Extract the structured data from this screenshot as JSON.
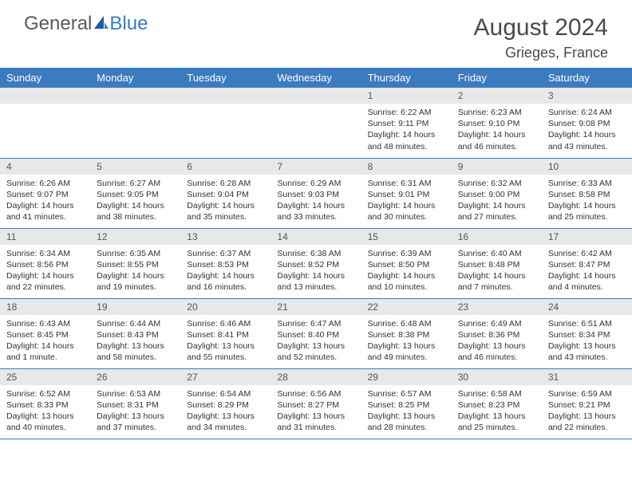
{
  "logo": {
    "part1": "General",
    "part2": "Blue"
  },
  "header": {
    "title": "August 2024",
    "location": "Grieges, France"
  },
  "colors": {
    "header_bg": "#3b7bbf",
    "header_text": "#ffffff",
    "daynum_bg": "#e8e8e8",
    "row_divider": "#3b7bbf",
    "body_text": "#333333",
    "logo_gray": "#5a5a5a",
    "logo_blue": "#3b7bbf"
  },
  "weekdays": [
    "Sunday",
    "Monday",
    "Tuesday",
    "Wednesday",
    "Thursday",
    "Friday",
    "Saturday"
  ],
  "weeks": [
    [
      {
        "day": "",
        "sunrise": "",
        "sunset": "",
        "daylight": ""
      },
      {
        "day": "",
        "sunrise": "",
        "sunset": "",
        "daylight": ""
      },
      {
        "day": "",
        "sunrise": "",
        "sunset": "",
        "daylight": ""
      },
      {
        "day": "",
        "sunrise": "",
        "sunset": "",
        "daylight": ""
      },
      {
        "day": "1",
        "sunrise": "Sunrise: 6:22 AM",
        "sunset": "Sunset: 9:11 PM",
        "daylight": "Daylight: 14 hours and 48 minutes."
      },
      {
        "day": "2",
        "sunrise": "Sunrise: 6:23 AM",
        "sunset": "Sunset: 9:10 PM",
        "daylight": "Daylight: 14 hours and 46 minutes."
      },
      {
        "day": "3",
        "sunrise": "Sunrise: 6:24 AM",
        "sunset": "Sunset: 9:08 PM",
        "daylight": "Daylight: 14 hours and 43 minutes."
      }
    ],
    [
      {
        "day": "4",
        "sunrise": "Sunrise: 6:26 AM",
        "sunset": "Sunset: 9:07 PM",
        "daylight": "Daylight: 14 hours and 41 minutes."
      },
      {
        "day": "5",
        "sunrise": "Sunrise: 6:27 AM",
        "sunset": "Sunset: 9:05 PM",
        "daylight": "Daylight: 14 hours and 38 minutes."
      },
      {
        "day": "6",
        "sunrise": "Sunrise: 6:28 AM",
        "sunset": "Sunset: 9:04 PM",
        "daylight": "Daylight: 14 hours and 35 minutes."
      },
      {
        "day": "7",
        "sunrise": "Sunrise: 6:29 AM",
        "sunset": "Sunset: 9:03 PM",
        "daylight": "Daylight: 14 hours and 33 minutes."
      },
      {
        "day": "8",
        "sunrise": "Sunrise: 6:31 AM",
        "sunset": "Sunset: 9:01 PM",
        "daylight": "Daylight: 14 hours and 30 minutes."
      },
      {
        "day": "9",
        "sunrise": "Sunrise: 6:32 AM",
        "sunset": "Sunset: 9:00 PM",
        "daylight": "Daylight: 14 hours and 27 minutes."
      },
      {
        "day": "10",
        "sunrise": "Sunrise: 6:33 AM",
        "sunset": "Sunset: 8:58 PM",
        "daylight": "Daylight: 14 hours and 25 minutes."
      }
    ],
    [
      {
        "day": "11",
        "sunrise": "Sunrise: 6:34 AM",
        "sunset": "Sunset: 8:56 PM",
        "daylight": "Daylight: 14 hours and 22 minutes."
      },
      {
        "day": "12",
        "sunrise": "Sunrise: 6:35 AM",
        "sunset": "Sunset: 8:55 PM",
        "daylight": "Daylight: 14 hours and 19 minutes."
      },
      {
        "day": "13",
        "sunrise": "Sunrise: 6:37 AM",
        "sunset": "Sunset: 8:53 PM",
        "daylight": "Daylight: 14 hours and 16 minutes."
      },
      {
        "day": "14",
        "sunrise": "Sunrise: 6:38 AM",
        "sunset": "Sunset: 8:52 PM",
        "daylight": "Daylight: 14 hours and 13 minutes."
      },
      {
        "day": "15",
        "sunrise": "Sunrise: 6:39 AM",
        "sunset": "Sunset: 8:50 PM",
        "daylight": "Daylight: 14 hours and 10 minutes."
      },
      {
        "day": "16",
        "sunrise": "Sunrise: 6:40 AM",
        "sunset": "Sunset: 8:48 PM",
        "daylight": "Daylight: 14 hours and 7 minutes."
      },
      {
        "day": "17",
        "sunrise": "Sunrise: 6:42 AM",
        "sunset": "Sunset: 8:47 PM",
        "daylight": "Daylight: 14 hours and 4 minutes."
      }
    ],
    [
      {
        "day": "18",
        "sunrise": "Sunrise: 6:43 AM",
        "sunset": "Sunset: 8:45 PM",
        "daylight": "Daylight: 14 hours and 1 minute."
      },
      {
        "day": "19",
        "sunrise": "Sunrise: 6:44 AM",
        "sunset": "Sunset: 8:43 PM",
        "daylight": "Daylight: 13 hours and 58 minutes."
      },
      {
        "day": "20",
        "sunrise": "Sunrise: 6:46 AM",
        "sunset": "Sunset: 8:41 PM",
        "daylight": "Daylight: 13 hours and 55 minutes."
      },
      {
        "day": "21",
        "sunrise": "Sunrise: 6:47 AM",
        "sunset": "Sunset: 8:40 PM",
        "daylight": "Daylight: 13 hours and 52 minutes."
      },
      {
        "day": "22",
        "sunrise": "Sunrise: 6:48 AM",
        "sunset": "Sunset: 8:38 PM",
        "daylight": "Daylight: 13 hours and 49 minutes."
      },
      {
        "day": "23",
        "sunrise": "Sunrise: 6:49 AM",
        "sunset": "Sunset: 8:36 PM",
        "daylight": "Daylight: 13 hours and 46 minutes."
      },
      {
        "day": "24",
        "sunrise": "Sunrise: 6:51 AM",
        "sunset": "Sunset: 8:34 PM",
        "daylight": "Daylight: 13 hours and 43 minutes."
      }
    ],
    [
      {
        "day": "25",
        "sunrise": "Sunrise: 6:52 AM",
        "sunset": "Sunset: 8:33 PM",
        "daylight": "Daylight: 13 hours and 40 minutes."
      },
      {
        "day": "26",
        "sunrise": "Sunrise: 6:53 AM",
        "sunset": "Sunset: 8:31 PM",
        "daylight": "Daylight: 13 hours and 37 minutes."
      },
      {
        "day": "27",
        "sunrise": "Sunrise: 6:54 AM",
        "sunset": "Sunset: 8:29 PM",
        "daylight": "Daylight: 13 hours and 34 minutes."
      },
      {
        "day": "28",
        "sunrise": "Sunrise: 6:56 AM",
        "sunset": "Sunset: 8:27 PM",
        "daylight": "Daylight: 13 hours and 31 minutes."
      },
      {
        "day": "29",
        "sunrise": "Sunrise: 6:57 AM",
        "sunset": "Sunset: 8:25 PM",
        "daylight": "Daylight: 13 hours and 28 minutes."
      },
      {
        "day": "30",
        "sunrise": "Sunrise: 6:58 AM",
        "sunset": "Sunset: 8:23 PM",
        "daylight": "Daylight: 13 hours and 25 minutes."
      },
      {
        "day": "31",
        "sunrise": "Sunrise: 6:59 AM",
        "sunset": "Sunset: 8:21 PM",
        "daylight": "Daylight: 13 hours and 22 minutes."
      }
    ]
  ]
}
